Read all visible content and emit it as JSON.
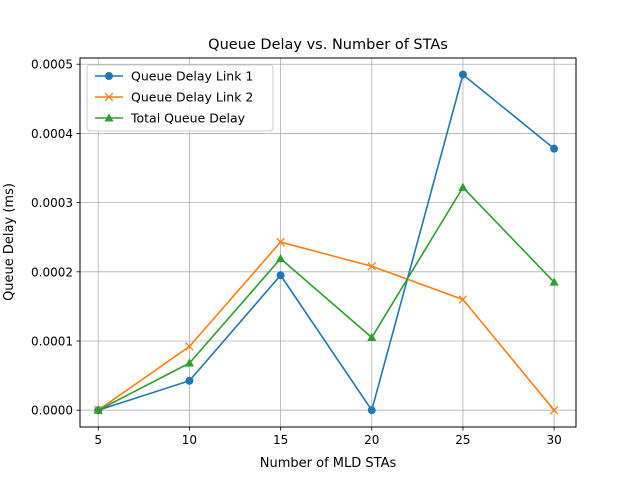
{
  "chart_data": {
    "type": "line",
    "title": "Queue Delay vs. Number of STAs",
    "xlabel": "Number of MLD STAs",
    "ylabel": "Queue Delay (ms)",
    "x": [
      5,
      10,
      15,
      20,
      25,
      30
    ],
    "xlim": [
      4,
      31.2
    ],
    "ylim": [
      -2.43e-05,
      0.000509
    ],
    "xticks": [
      5,
      10,
      15,
      20,
      25,
      30
    ],
    "xtick_labels": [
      "5",
      "10",
      "15",
      "20",
      "25",
      "30"
    ],
    "yticks": [
      0,
      0.0001,
      0.0002,
      0.0003,
      0.0004,
      0.0005
    ],
    "ytick_labels": [
      "0.0000",
      "0.0001",
      "0.0002",
      "0.0003",
      "0.0004",
      "0.0005"
    ],
    "grid": true,
    "legend_position": "upper-left",
    "series": [
      {
        "name": "Queue Delay Link 1",
        "color": "#1f77b4",
        "marker": "circle",
        "values": [
          0.0,
          4.25e-05,
          0.000195,
          0.0,
          0.000485,
          0.000378
        ]
      },
      {
        "name": "Queue Delay Link 2",
        "color": "#ff7f0e",
        "marker": "x",
        "values": [
          0.0,
          9.2e-05,
          0.000243,
          0.000208,
          0.00016,
          0.0
        ]
      },
      {
        "name": "Total Queue Delay",
        "color": "#2ca02c",
        "marker": "triangle",
        "values": [
          0.0,
          6.8e-05,
          0.000219,
          0.000105,
          0.000322,
          0.000185
        ]
      }
    ]
  }
}
